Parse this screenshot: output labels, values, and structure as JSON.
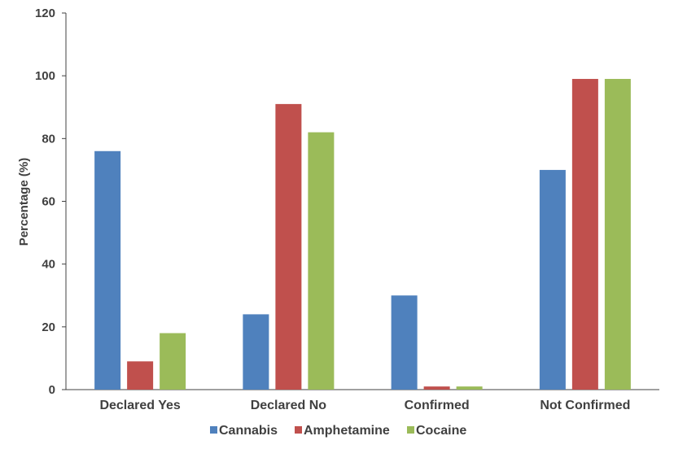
{
  "chart_data": {
    "type": "bar",
    "title": "",
    "xlabel": "",
    "ylabel": "Percentage (%)",
    "ylim": [
      0,
      120
    ],
    "yticks": [
      0,
      20,
      40,
      60,
      80,
      100,
      120
    ],
    "categories": [
      "Declared Yes",
      "Declared No",
      "Confirmed",
      "Not Confirmed"
    ],
    "series": [
      {
        "name": "Cannabis",
        "color": "#4F81BD",
        "values": [
          76,
          24,
          30,
          70
        ]
      },
      {
        "name": "Amphetamine",
        "color": "#C0504D",
        "values": [
          9,
          91,
          1,
          99
        ]
      },
      {
        "name": "Cocaine",
        "color": "#9BBB59",
        "values": [
          18,
          82,
          1,
          99
        ]
      }
    ],
    "legend_position": "bottom",
    "grid": false
  }
}
